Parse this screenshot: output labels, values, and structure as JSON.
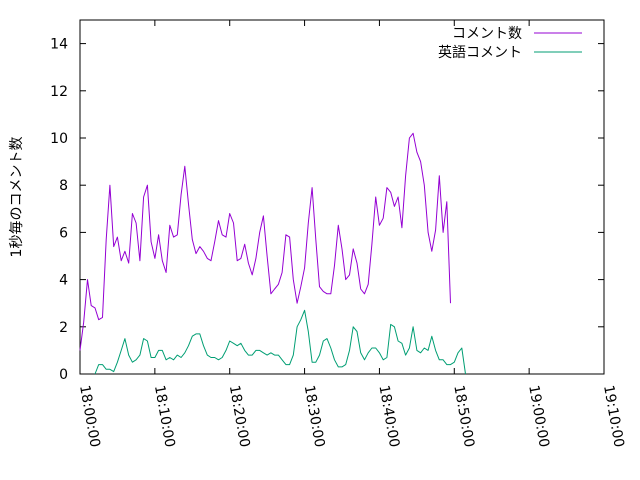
{
  "chart_data": {
    "type": "line",
    "title": "",
    "xlabel": "",
    "ylabel": "1秒毎のコメント数",
    "xlim": [
      "18:00:00",
      "19:10:00"
    ],
    "ylim": [
      0,
      15
    ],
    "x_ticks": [
      "18:00:00",
      "18:10:00",
      "18:20:00",
      "18:30:00",
      "18:40:00",
      "18:50:00",
      "19:00:00",
      "19:10:00"
    ],
    "y_ticks": [
      0,
      2,
      4,
      6,
      8,
      10,
      12,
      14
    ],
    "grid": false,
    "legend_position": "top-right",
    "sample_interval_seconds": 30,
    "series": [
      {
        "name": "コメント数",
        "color": "#9400d3",
        "x_start": "18:00:00",
        "values": [
          1.0,
          2.2,
          4.0,
          2.9,
          2.8,
          2.3,
          2.4,
          5.7,
          8.0,
          5.4,
          5.8,
          4.8,
          5.2,
          4.7,
          6.8,
          6.4,
          4.8,
          7.5,
          8.0,
          5.6,
          4.9,
          5.9,
          4.8,
          4.3,
          6.3,
          5.8,
          5.9,
          7.6,
          8.8,
          7.2,
          5.7,
          5.1,
          5.4,
          5.2,
          4.9,
          4.8,
          5.6,
          6.5,
          5.9,
          5.8,
          6.8,
          6.4,
          4.8,
          4.9,
          5.5,
          4.7,
          4.2,
          4.9,
          6.0,
          6.7,
          5.0,
          3.4,
          3.6,
          3.8,
          4.3,
          5.9,
          5.8,
          4.0,
          3.0,
          3.7,
          4.5,
          6.4,
          7.9,
          5.7,
          3.7,
          3.5,
          3.4,
          3.4,
          4.6,
          6.3,
          5.3,
          4.0,
          4.2,
          5.3,
          4.7,
          3.6,
          3.4,
          3.8,
          5.5,
          7.5,
          6.3,
          6.6,
          7.9,
          7.7,
          7.1,
          7.5,
          6.2,
          8.4,
          10.0,
          10.2,
          9.4,
          9.0,
          8.0,
          6.0,
          5.2,
          6.1,
          8.4,
          6.0,
          7.3,
          3.0
        ],
        "area_fill": false
      },
      {
        "name": "英語コメント",
        "color": "#009e73",
        "x_start": "18:02:00",
        "values": [
          0.0,
          0.4,
          0.4,
          0.2,
          0.2,
          0.1,
          0.5,
          1.0,
          1.5,
          0.8,
          0.5,
          0.6,
          0.8,
          1.5,
          1.4,
          0.7,
          0.7,
          1.0,
          1.0,
          0.6,
          0.7,
          0.6,
          0.8,
          0.7,
          0.9,
          1.2,
          1.6,
          1.7,
          1.7,
          1.2,
          0.8,
          0.7,
          0.7,
          0.6,
          0.7,
          1.0,
          1.4,
          1.3,
          1.2,
          1.3,
          1.0,
          0.8,
          0.8,
          1.0,
          1.0,
          0.9,
          0.8,
          0.9,
          0.8,
          0.8,
          0.6,
          0.4,
          0.4,
          0.8,
          2.0,
          2.3,
          2.7,
          1.8,
          0.5,
          0.5,
          0.8,
          1.4,
          1.5,
          1.1,
          0.6,
          0.3,
          0.3,
          0.4,
          1.0,
          2.0,
          1.8,
          0.9,
          0.6,
          0.9,
          1.1,
          1.1,
          0.9,
          0.6,
          0.7,
          2.1,
          2.0,
          1.4,
          1.3,
          0.8,
          1.1,
          2.0,
          1.0,
          0.9,
          1.1,
          1.0,
          1.6,
          1.0,
          0.6,
          0.6,
          0.4,
          0.4,
          0.5,
          0.9,
          1.1,
          0.0
        ]
      }
    ]
  }
}
